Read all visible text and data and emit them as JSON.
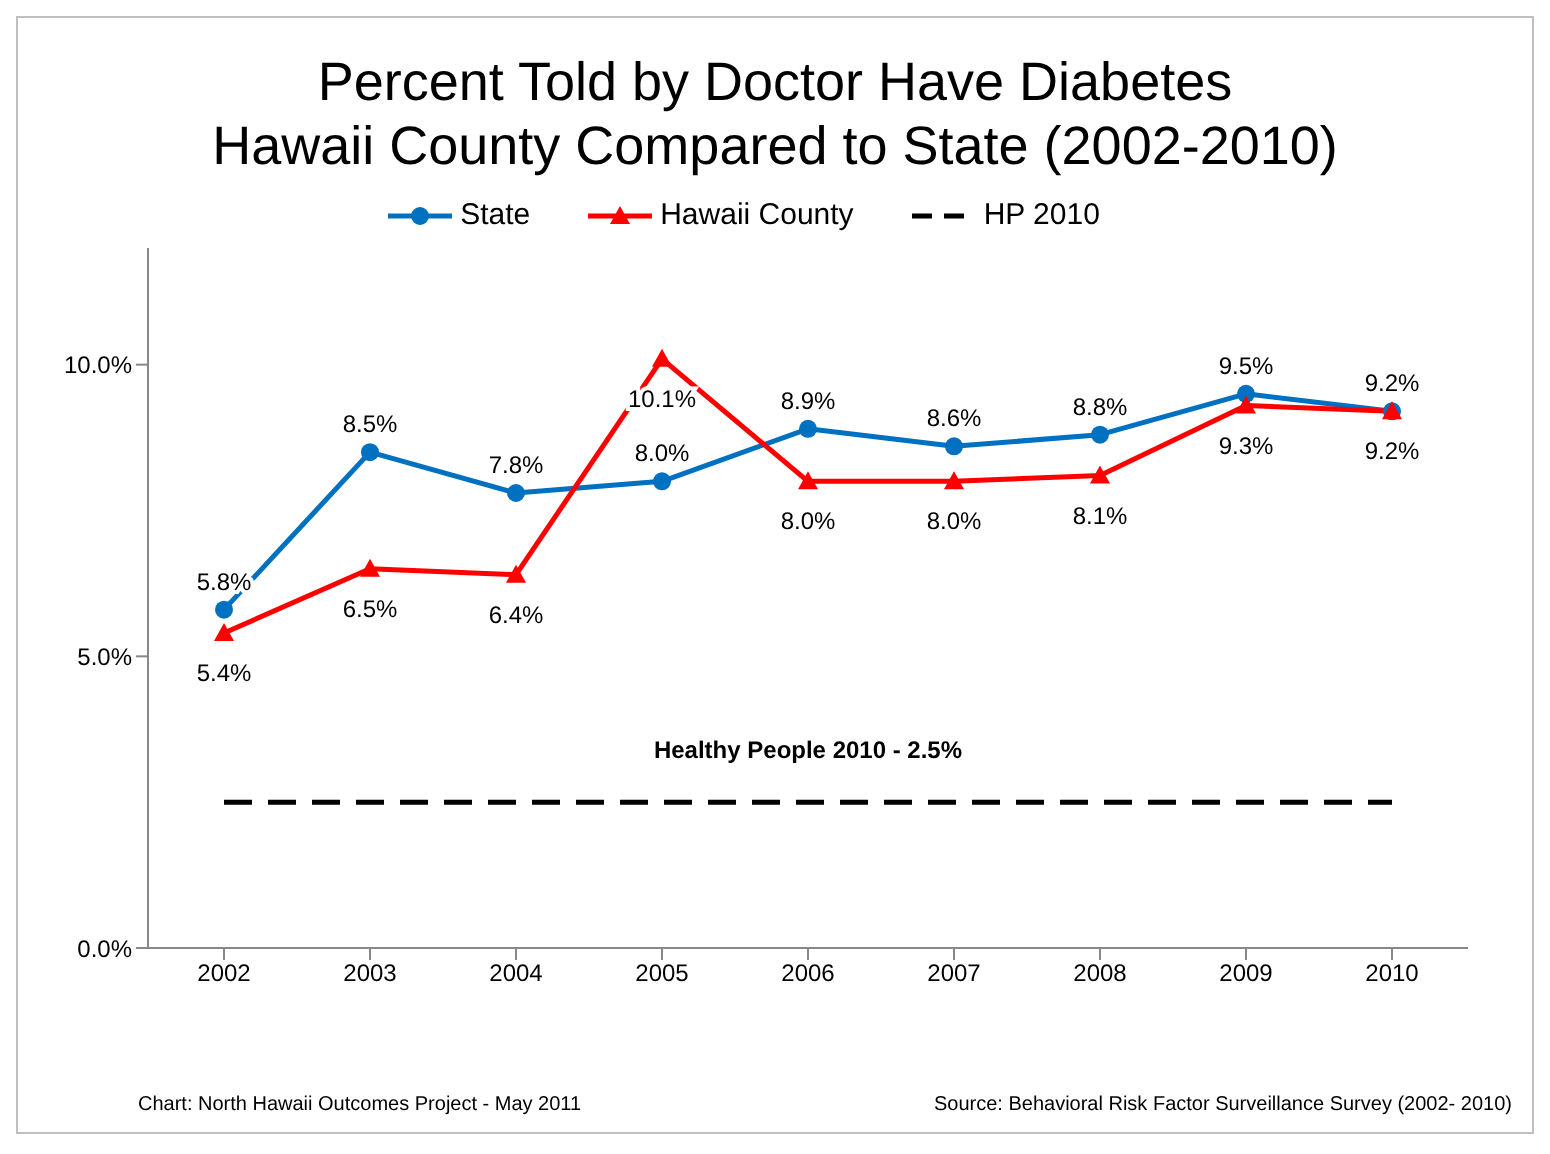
{
  "chart_data": {
    "type": "line",
    "title": "Percent Told by Doctor Have Diabetes\nHawaii County Compared to State  (2002-2010)",
    "categories": [
      "2002",
      "2003",
      "2004",
      "2005",
      "2006",
      "2007",
      "2008",
      "2009",
      "2010"
    ],
    "series": [
      {
        "name": "State",
        "color": "#0070c0",
        "marker": "circle",
        "values": [
          5.8,
          8.5,
          7.8,
          8.0,
          8.9,
          8.6,
          8.8,
          9.5,
          9.2
        ],
        "value_labels": [
          "5.8%",
          "8.5%",
          "7.8%",
          "8.0%",
          "8.9%",
          "8.6%",
          "8.8%",
          "9.5%",
          "9.2%"
        ]
      },
      {
        "name": "Hawaii County",
        "color": "#ff0000",
        "marker": "triangle",
        "values": [
          5.4,
          6.5,
          6.4,
          10.1,
          8.0,
          8.0,
          8.1,
          9.3,
          9.2
        ],
        "value_labels": [
          "5.4%",
          "6.5%",
          "6.4%",
          "10.1%",
          "8.0%",
          "8.0%",
          "8.1%",
          "9.3%",
          "9.2%"
        ]
      },
      {
        "name": "HP 2010",
        "color": "#000000",
        "marker": "none",
        "line_style": "dashed",
        "values": [
          2.5,
          2.5,
          2.5,
          2.5,
          2.5,
          2.5,
          2.5,
          2.5,
          2.5
        ]
      }
    ],
    "ylim": [
      0,
      12
    ],
    "yticks": [
      {
        "value": 0,
        "label": "0.0%"
      },
      {
        "value": 5,
        "label": "5.0%"
      },
      {
        "value": 10,
        "label": "10.0%"
      }
    ],
    "grid": false,
    "legend": "top",
    "annotations": [
      {
        "text": "Healthy People 2010 - 2.5%",
        "x": "2006",
        "y": 2.5
      },
      "Chart:  North Hawaii Outcomes Project - May 2011",
      "Source: Behavioral Risk Factor Surveillance Survey (2002- 2010)"
    ]
  }
}
